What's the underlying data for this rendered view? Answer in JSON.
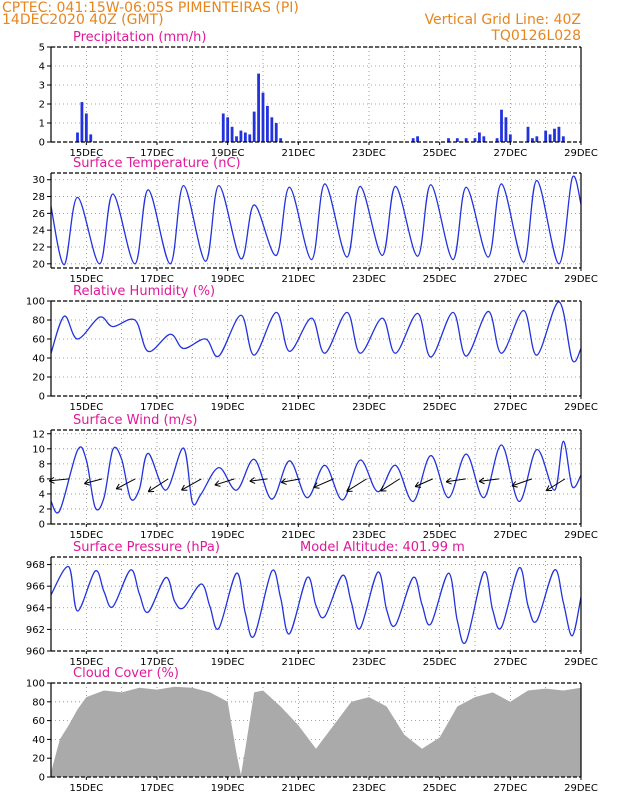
{
  "header": {
    "station_line": "CPTEC:   041:15W-06:05S   PIMENTEIRAS (PI)",
    "date_line": "14DEC2020 40Z (GMT)",
    "grid_note": "Vertical Grid Line: 40Z",
    "run_code": "TQ0126L028"
  },
  "x_axis": {
    "tick_labels": [
      "15DEC",
      "17DEC",
      "19DEC",
      "21DEC",
      "23DEC",
      "25DEC",
      "27DEC",
      "29DEC"
    ],
    "start": "14DEC2020 00Z",
    "end": "29DEC2020 00Z"
  },
  "colors": {
    "series": "#2233dd",
    "cloud": "#aaaaaa",
    "title": "#e0189a",
    "header": "#e8851e",
    "grid": "#888888"
  },
  "chart_data": [
    {
      "type": "bar",
      "title": "Precipitation (mm/h)",
      "ylim": [
        0,
        5
      ],
      "yticks": [
        0,
        1,
        2,
        3,
        4,
        5
      ],
      "x": [
        "14DEC 18Z",
        "14DEC 21Z",
        "15DEC 00Z",
        "15DEC 03Z",
        "18DEC 21Z",
        "19DEC 00Z",
        "19DEC 03Z",
        "19DEC 06Z",
        "19DEC 09Z",
        "19DEC 12Z",
        "19DEC 15Z",
        "19DEC 18Z",
        "19DEC 21Z",
        "20DEC 00Z",
        "20DEC 03Z",
        "20DEC 06Z",
        "20DEC 09Z",
        "20DEC 12Z",
        "24DEC 06Z",
        "24DEC 09Z",
        "25DEC 06Z",
        "25DEC 12Z",
        "25DEC 18Z",
        "26DEC 00Z",
        "26DEC 03Z",
        "26DEC 06Z",
        "26DEC 15Z",
        "26DEC 18Z",
        "26DEC 21Z",
        "27DEC 00Z",
        "27DEC 12Z",
        "27DEC 15Z",
        "27DEC 18Z",
        "28DEC 00Z",
        "28DEC 03Z",
        "28DEC 06Z",
        "28DEC 09Z",
        "28DEC 12Z"
      ],
      "values": [
        0.5,
        2.1,
        1.5,
        0.4,
        1.5,
        1.3,
        0.8,
        0.3,
        0.6,
        0.5,
        0.4,
        1.6,
        3.6,
        2.6,
        1.9,
        1.3,
        1.0,
        0.2,
        0.2,
        0.3,
        0.2,
        0.2,
        0.2,
        0.2,
        0.5,
        0.3,
        0.2,
        1.7,
        1.3,
        0.4,
        0.8,
        0.2,
        0.3,
        0.6,
        0.4,
        0.7,
        0.8,
        0.3
      ]
    },
    {
      "type": "line",
      "title": "Surface Temperature (nC)",
      "ylim": [
        19.5,
        30.8
      ],
      "yticks": [
        20,
        22,
        24,
        26,
        28,
        30
      ],
      "series": [
        {
          "x": [
            "14DEC 00Z",
            "14DEC 09Z",
            "14DEC 18Z",
            "15DEC 09Z",
            "15DEC 18Z",
            "16DEC 09Z",
            "16DEC 18Z",
            "17DEC 09Z",
            "17DEC 18Z",
            "18DEC 09Z",
            "18DEC 18Z",
            "19DEC 09Z",
            "19DEC 18Z",
            "20DEC 09Z",
            "20DEC 18Z",
            "21DEC 09Z",
            "21DEC 18Z",
            "22DEC 09Z",
            "22DEC 18Z",
            "23DEC 09Z",
            "23DEC 18Z",
            "24DEC 09Z",
            "24DEC 18Z",
            "25DEC 09Z",
            "25DEC 18Z",
            "26DEC 09Z",
            "26DEC 18Z",
            "27DEC 09Z",
            "27DEC 18Z",
            "28DEC 09Z",
            "28DEC 18Z",
            "29DEC 00Z"
          ],
          "values": [
            26.8,
            19.9,
            27.9,
            20.0,
            28.3,
            20.0,
            28.8,
            20.0,
            29.3,
            20.3,
            29.3,
            20.6,
            27.0,
            21.0,
            29.1,
            20.5,
            29.5,
            20.8,
            29.2,
            21.0,
            29.2,
            20.9,
            29.4,
            20.5,
            29.1,
            20.8,
            29.5,
            20.2,
            29.9,
            20.0,
            30.2,
            27.1
          ]
        }
      ]
    },
    {
      "type": "line",
      "title": "Relative Humidity (%)",
      "ylim": [
        0,
        100
      ],
      "yticks": [
        0,
        20,
        40,
        60,
        80,
        100
      ],
      "series": [
        {
          "x": [
            "14DEC 00Z",
            "14DEC 09Z",
            "14DEC 18Z",
            "15DEC 09Z",
            "15DEC 18Z",
            "16DEC 09Z",
            "16DEC 18Z",
            "17DEC 09Z",
            "17DEC 18Z",
            "18DEC 09Z",
            "18DEC 18Z",
            "19DEC 09Z",
            "19DEC 18Z",
            "20DEC 09Z",
            "20DEC 18Z",
            "21DEC 09Z",
            "21DEC 18Z",
            "22DEC 09Z",
            "22DEC 18Z",
            "23DEC 09Z",
            "23DEC 18Z",
            "24DEC 09Z",
            "24DEC 18Z",
            "25DEC 09Z",
            "25DEC 18Z",
            "26DEC 09Z",
            "26DEC 18Z",
            "27DEC 09Z",
            "27DEC 18Z",
            "28DEC 09Z",
            "28DEC 18Z",
            "29DEC 00Z"
          ],
          "values": [
            45,
            84,
            60,
            83,
            73,
            80,
            47,
            65,
            50,
            60,
            42,
            85,
            43,
            88,
            47,
            82,
            45,
            88,
            45,
            82,
            45,
            87,
            41,
            88,
            42,
            89,
            45,
            90,
            43,
            99,
            38,
            50
          ]
        }
      ]
    },
    {
      "type": "line",
      "title": "Surface Wind (m/s)",
      "ylim": [
        0,
        12.5
      ],
      "yticks": [
        0,
        2,
        4,
        6,
        8,
        10,
        12
      ],
      "series": [
        {
          "x": [
            "14DEC 00Z",
            "14DEC 06Z",
            "14DEC 18Z",
            "15DEC 00Z",
            "15DEC 06Z",
            "15DEC 12Z",
            "15DEC 18Z",
            "16DEC 00Z",
            "16DEC 06Z",
            "16DEC 12Z",
            "16DEC 18Z",
            "17DEC 06Z",
            "17DEC 18Z",
            "18DEC 00Z",
            "18DEC 06Z",
            "18DEC 18Z",
            "19DEC 06Z",
            "19DEC 18Z",
            "20DEC 06Z",
            "20DEC 18Z",
            "21DEC 06Z",
            "21DEC 18Z",
            "22DEC 06Z",
            "22DEC 18Z",
            "23DEC 06Z",
            "23DEC 18Z",
            "24DEC 06Z",
            "24DEC 18Z",
            "25DEC 06Z",
            "25DEC 18Z",
            "26DEC 06Z",
            "26DEC 18Z",
            "27DEC 06Z",
            "27DEC 18Z",
            "28DEC 06Z",
            "28DEC 12Z",
            "28DEC 18Z",
            "29DEC 00Z"
          ],
          "values": [
            3.0,
            1.8,
            9.8,
            8.5,
            2.2,
            3.5,
            9.9,
            8.6,
            3.4,
            4.6,
            9.4,
            4.5,
            10.1,
            2.9,
            4.0,
            7.5,
            4.5,
            8.6,
            3.3,
            8.4,
            3.5,
            7.8,
            3.2,
            8.5,
            4.3,
            7.8,
            3.0,
            9.1,
            3.5,
            9.3,
            3.5,
            10.5,
            3.0,
            9.9,
            4.5,
            11.0,
            5.0,
            6.5
          ]
        }
      ]
    },
    {
      "type": "line",
      "title": "Surface Pressure (hPa)",
      "annotation": "Model Altitude: 401.99 m",
      "ylim": [
        960,
        968.7
      ],
      "yticks": [
        960,
        962,
        964,
        966,
        968
      ],
      "series": [
        {
          "x": [
            "14DEC 00Z",
            "14DEC 12Z",
            "14DEC 18Z",
            "15DEC 06Z",
            "15DEC 12Z",
            "15DEC 18Z",
            "16DEC 06Z",
            "16DEC 12Z",
            "16DEC 18Z",
            "17DEC 06Z",
            "17DEC 12Z",
            "17DEC 18Z",
            "18DEC 06Z",
            "18DEC 12Z",
            "18DEC 18Z",
            "19DEC 06Z",
            "19DEC 12Z",
            "19DEC 18Z",
            "20DEC 06Z",
            "20DEC 12Z",
            "20DEC 18Z",
            "21DEC 06Z",
            "21DEC 12Z",
            "21DEC 18Z",
            "22DEC 06Z",
            "22DEC 12Z",
            "22DEC 18Z",
            "23DEC 06Z",
            "23DEC 12Z",
            "23DEC 18Z",
            "24DEC 06Z",
            "24DEC 12Z",
            "24DEC 18Z",
            "25DEC 06Z",
            "25DEC 12Z",
            "25DEC 18Z",
            "26DEC 06Z",
            "26DEC 12Z",
            "26DEC 18Z",
            "27DEC 06Z",
            "27DEC 12Z",
            "27DEC 18Z",
            "28DEC 06Z",
            "28DEC 12Z",
            "28DEC 18Z",
            "29DEC 00Z"
          ],
          "values": [
            965.2,
            967.8,
            963.7,
            967.4,
            965.5,
            964.1,
            967.5,
            965.3,
            963.6,
            966.8,
            964.6,
            964.0,
            966.2,
            964.1,
            962.1,
            967.2,
            963.5,
            961.4,
            967.4,
            964.9,
            961.6,
            966.8,
            964.2,
            963.2,
            967.0,
            964.5,
            962.1,
            967.3,
            963.8,
            962.4,
            966.8,
            964.3,
            962.5,
            967.2,
            962.8,
            960.9,
            967.3,
            963.8,
            962.2,
            967.7,
            964.2,
            962.8,
            967.5,
            964.5,
            961.4,
            965.0
          ]
        }
      ]
    },
    {
      "type": "area",
      "title": "Cloud Cover (%)",
      "ylim": [
        0,
        100
      ],
      "yticks": [
        0,
        20,
        40,
        60,
        80,
        100
      ],
      "series": [
        {
          "x": [
            "14DEC 00Z",
            "14DEC 06Z",
            "14DEC 12Z",
            "14DEC 18Z",
            "15DEC 00Z",
            "15DEC 12Z",
            "16DEC 00Z",
            "16DEC 12Z",
            "17DEC 00Z",
            "17DEC 12Z",
            "18DEC 00Z",
            "18DEC 12Z",
            "19DEC 00Z",
            "19DEC 06Z",
            "19DEC 09Z",
            "19DEC 12Z",
            "19DEC 18Z",
            "20DEC 00Z",
            "20DEC 12Z",
            "21DEC 00Z",
            "21DEC 12Z",
            "22DEC 00Z",
            "22DEC 12Z",
            "23DEC 00Z",
            "23DEC 12Z",
            "24DEC 00Z",
            "24DEC 12Z",
            "25DEC 00Z",
            "25DEC 12Z",
            "26DEC 00Z",
            "26DEC 12Z",
            "27DEC 00Z",
            "27DEC 12Z",
            "28DEC 00Z",
            "28DEC 12Z",
            "29DEC 00Z"
          ],
          "values": [
            5,
            40,
            55,
            72,
            85,
            92,
            90,
            95,
            93,
            96,
            95,
            90,
            80,
            25,
            2,
            30,
            90,
            92,
            75,
            55,
            30,
            55,
            80,
            85,
            75,
            45,
            30,
            42,
            75,
            85,
            90,
            80,
            92,
            94,
            92,
            95
          ]
        }
      ]
    }
  ]
}
